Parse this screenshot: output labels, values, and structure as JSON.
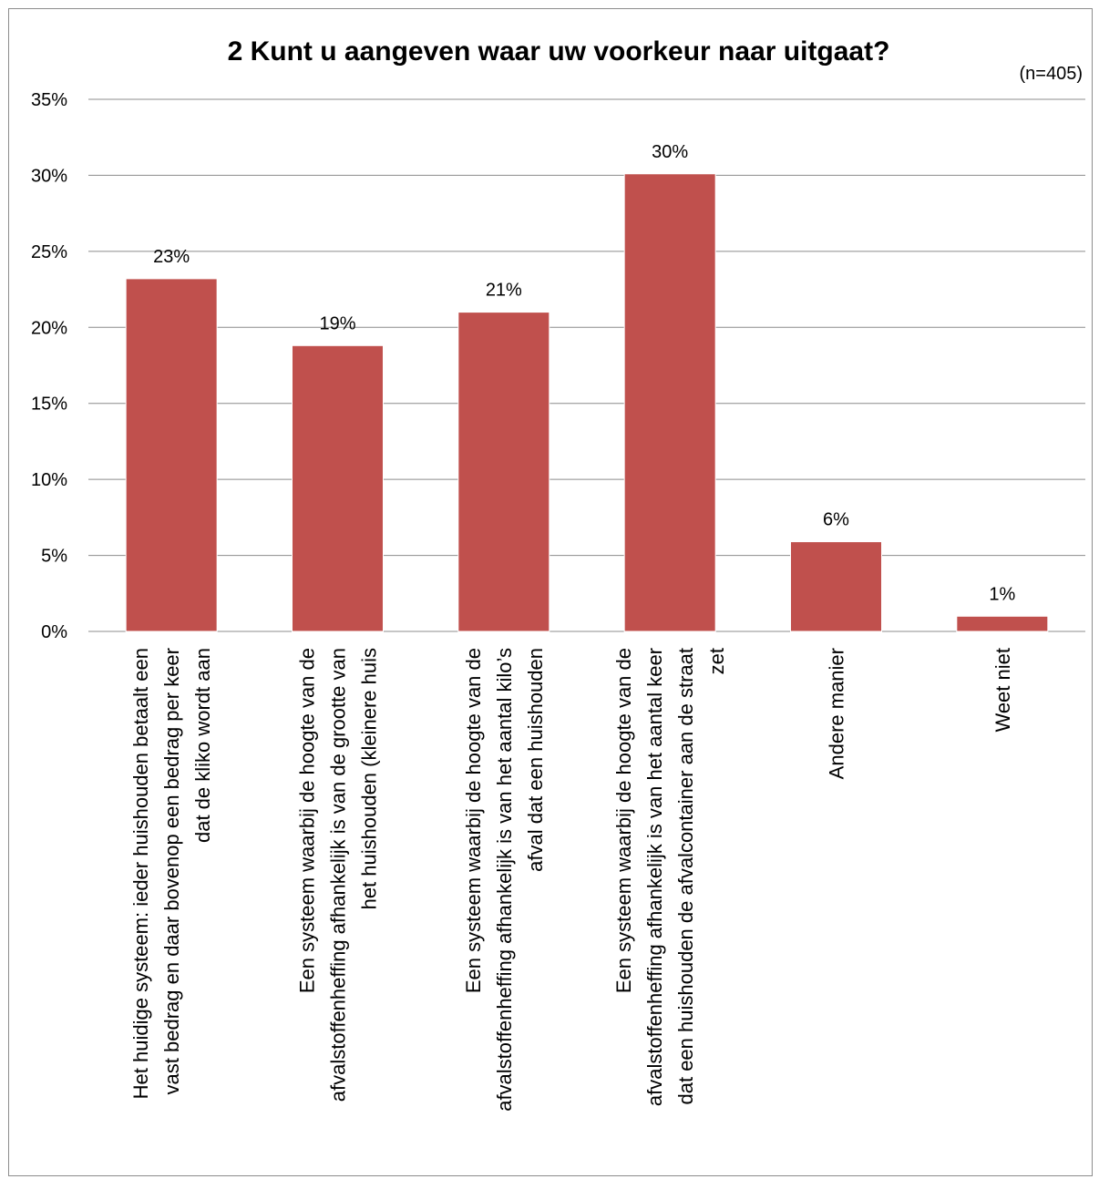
{
  "chart_data": {
    "type": "bar",
    "title": "2 Kunt u aangeven waar uw voorkeur naar uitgaat?",
    "note": "(n=405)",
    "categories": [
      [
        "Het huidige systeem: ieder huishouden betaalt een",
        "vast bedrag en daar bovenop een bedrag per keer",
        "dat de kliko wordt aan"
      ],
      [
        "Een systeem waarbij de hoogte van de",
        "afvalstoffenheffing afhankelijk is van de grootte van",
        "het huishouden (kleinere huis"
      ],
      [
        "Een systeem waarbij de hoogte van de",
        "afvalstoffenheffing afhankelijk is van het aantal kilo’s",
        "afval dat een huishouden"
      ],
      [
        "Een systeem waarbij de hoogte van de",
        "afvalstoffenheffing afhankelijk is van het aantal keer",
        "dat een huishouden de afvalcontainer aan de straat",
        "zet"
      ],
      [
        "Andere manier"
      ],
      [
        "Weet niet"
      ]
    ],
    "values": [
      23.2,
      18.8,
      21.0,
      30.1,
      5.9,
      1.0
    ],
    "data_labels": [
      "23%",
      "19%",
      "21%",
      "30%",
      "6%",
      "1%"
    ],
    "yticks": [
      "0%",
      "5%",
      "10%",
      "15%",
      "20%",
      "25%",
      "30%",
      "35%"
    ],
    "ylim": [
      0,
      35
    ],
    "xlabel": "",
    "ylabel": "",
    "grid": true,
    "legend": "none",
    "bar_color": "#c0504d"
  }
}
